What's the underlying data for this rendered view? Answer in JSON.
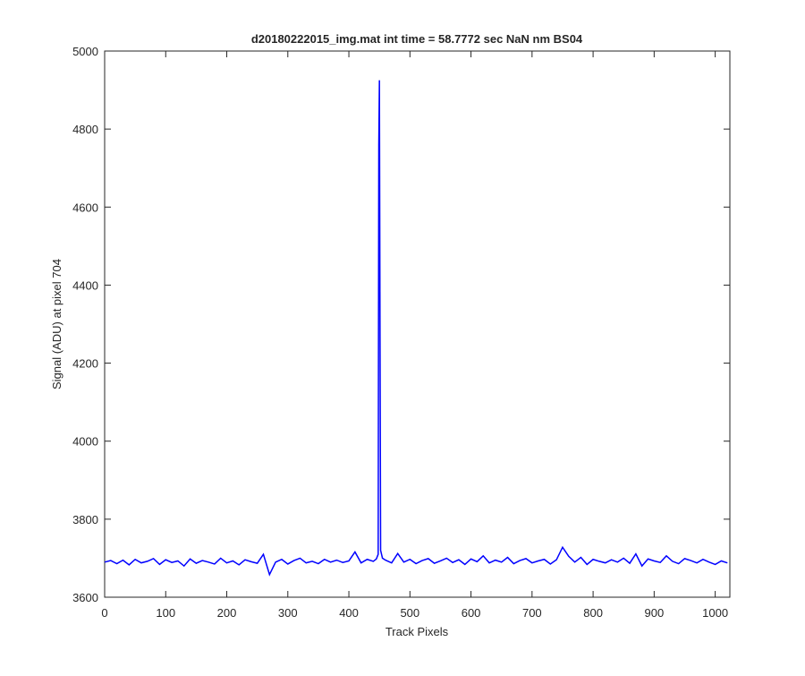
{
  "chart_data": {
    "type": "line",
    "title": "d20180222015_img.mat int time = 58.7772 sec  NaN nm BS04",
    "x_label": "Track Pixels",
    "y_label": "Signal (ADU) at pixel 704",
    "xlim": [
      0,
      1024
    ],
    "ylim": [
      3600,
      5000
    ],
    "xticks": [
      0,
      100,
      200,
      300,
      400,
      500,
      600,
      700,
      800,
      900,
      1000
    ],
    "yticks": [
      3600,
      3800,
      4000,
      4200,
      4400,
      4600,
      4800,
      5000
    ],
    "x": [
      0,
      10,
      20,
      30,
      40,
      50,
      60,
      70,
      80,
      90,
      100,
      110,
      120,
      130,
      140,
      150,
      160,
      170,
      180,
      190,
      200,
      210,
      220,
      230,
      240,
      250,
      260,
      270,
      280,
      290,
      300,
      310,
      320,
      330,
      340,
      350,
      360,
      370,
      380,
      390,
      400,
      410,
      420,
      430,
      440,
      445,
      448,
      449,
      450,
      451,
      452,
      455,
      460,
      470,
      480,
      490,
      500,
      510,
      520,
      530,
      540,
      550,
      560,
      570,
      580,
      590,
      600,
      610,
      620,
      630,
      640,
      650,
      660,
      670,
      680,
      690,
      700,
      710,
      720,
      730,
      740,
      750,
      760,
      770,
      780,
      790,
      800,
      810,
      820,
      830,
      840,
      850,
      860,
      870,
      880,
      890,
      900,
      910,
      920,
      930,
      940,
      950,
      960,
      970,
      980,
      990,
      1000,
      1010,
      1020
    ],
    "series": [
      {
        "color": "#0000ff",
        "values": [
          3690,
          3694,
          3686,
          3695,
          3683,
          3697,
          3688,
          3692,
          3699,
          3684,
          3696,
          3689,
          3693,
          3680,
          3698,
          3687,
          3694,
          3690,
          3685,
          3700,
          3688,
          3693,
          3683,
          3696,
          3691,
          3687,
          3710,
          3658,
          3690,
          3697,
          3685,
          3694,
          3700,
          3688,
          3692,
          3686,
          3697,
          3690,
          3695,
          3689,
          3693,
          3716,
          3688,
          3697,
          3692,
          3698,
          3710,
          4760,
          4925,
          4300,
          3720,
          3700,
          3695,
          3688,
          3712,
          3690,
          3697,
          3686,
          3694,
          3699,
          3687,
          3693,
          3700,
          3689,
          3696,
          3684,
          3698,
          3691,
          3706,
          3688,
          3695,
          3690,
          3702,
          3686,
          3694,
          3699,
          3688,
          3693,
          3697,
          3685,
          3696,
          3728,
          3705,
          3690,
          3702,
          3684,
          3697,
          3692,
          3688,
          3696,
          3690,
          3700,
          3687,
          3711,
          3680,
          3698,
          3693,
          3689,
          3706,
          3692,
          3686,
          3699,
          3694,
          3688,
          3697,
          3690,
          3684,
          3693,
          3688
        ]
      }
    ]
  }
}
